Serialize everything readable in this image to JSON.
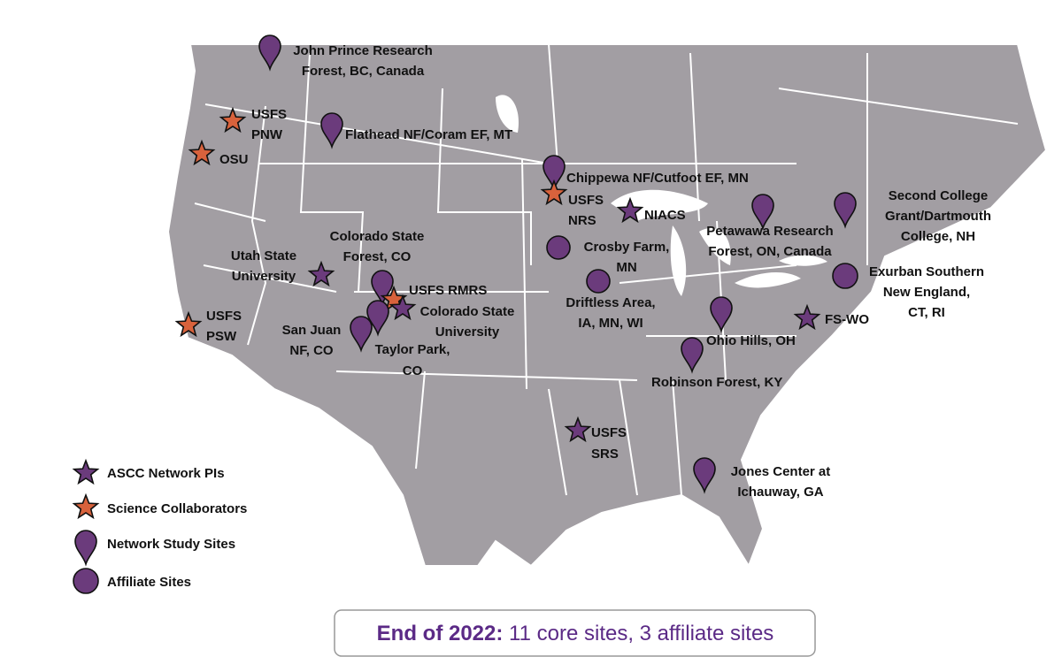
{
  "sites": [
    {
      "label": [
        "John Prince Research",
        "Forest, BC, Canada"
      ]
    },
    {
      "label": [
        "USFS",
        "PNW"
      ]
    },
    {
      "label": [
        "OSU"
      ]
    },
    {
      "label": [
        "Flathead NF/Coram EF, MT"
      ]
    },
    {
      "label": [
        "Chippewa NF/Cutfoot EF, MN"
      ]
    },
    {
      "label": [
        "USFS",
        "NRS"
      ]
    },
    {
      "label": [
        "NIACS"
      ]
    },
    {
      "label": [
        "Crosby Farm,",
        "MN"
      ]
    },
    {
      "label": [
        "Driftless Area,",
        "IA, MN, WI"
      ]
    },
    {
      "label": [
        "Utah State",
        "University"
      ]
    },
    {
      "label": [
        "Colorado State",
        "Forest, CO"
      ]
    },
    {
      "label": [
        "USFS RMRS"
      ]
    },
    {
      "label": [
        "Colorado State",
        "University"
      ]
    },
    {
      "label": [
        "San Juan",
        "NF, CO"
      ]
    },
    {
      "label": [
        "Taylor Park,",
        "CO"
      ]
    },
    {
      "label": [
        "USFS",
        "PSW"
      ]
    },
    {
      "label": [
        "Petawawa Research",
        "Forest, ON, Canada"
      ]
    },
    {
      "label": [
        "Second College",
        "Grant/Dartmouth",
        "College, NH"
      ]
    },
    {
      "label": [
        "Exurban Southern",
        "New England,",
        "CT, RI"
      ]
    },
    {
      "label": [
        "FS-WO"
      ]
    },
    {
      "label": [
        "Ohio Hills, OH"
      ]
    },
    {
      "label": [
        "Robinson Forest, KY"
      ]
    },
    {
      "label": [
        "USFS",
        "SRS"
      ]
    },
    {
      "label": [
        "Jones Center at",
        "Ichauway, GA"
      ]
    }
  ],
  "legend": [
    "ASCC Network PIs",
    "Science Collaborators",
    "Network Study Sites",
    "Affiliate Sites"
  ],
  "footer": {
    "lead": "End of 2022:",
    "text": "11 core sites, 3 affiliate sites"
  }
}
